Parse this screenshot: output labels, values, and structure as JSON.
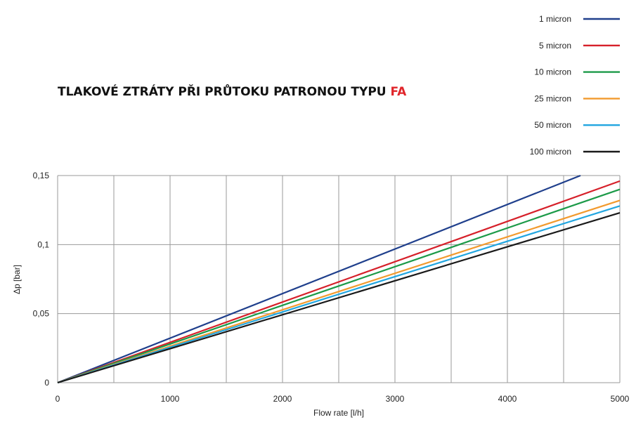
{
  "title": {
    "main": "TLAKOVÉ ZTRÁTY PŘI PRŮTOKU PATRONOU TYPU ",
    "accent": "FA"
  },
  "chart_data": {
    "type": "line",
    "xlabel": "Flow rate [l/h]",
    "ylabel": "Δp [bar]",
    "xlim": [
      0,
      5000
    ],
    "ylim": [
      0,
      0.15
    ],
    "x_ticks": [
      0,
      1000,
      2000,
      3000,
      4000,
      5000
    ],
    "x_tick_labels": [
      "0",
      "1000",
      "2000",
      "3000",
      "4000",
      "5000"
    ],
    "y_ticks": [
      0,
      0.05,
      0.1,
      0.15
    ],
    "y_tick_labels": [
      "0",
      "0,05",
      "0,1",
      "0,15"
    ],
    "grid": true,
    "legend_position": "top-right",
    "series": [
      {
        "name": "1 micron",
        "color": "#1f3f8c",
        "x": [
          0,
          4650
        ],
        "y": [
          0,
          0.15
        ]
      },
      {
        "name": "5 micron",
        "color": "#d6202a",
        "x": [
          0,
          5000
        ],
        "y": [
          0,
          0.146
        ]
      },
      {
        "name": "10 micron",
        "color": "#1c9a48",
        "x": [
          0,
          5000
        ],
        "y": [
          0,
          0.14
        ]
      },
      {
        "name": "25 micron",
        "color": "#f29a2e",
        "x": [
          0,
          5000
        ],
        "y": [
          0,
          0.132
        ]
      },
      {
        "name": "50 micron",
        "color": "#22a6e0",
        "x": [
          0,
          5000
        ],
        "y": [
          0,
          0.128
        ]
      },
      {
        "name": "100 micron",
        "color": "#1a1a1a",
        "x": [
          0,
          5000
        ],
        "y": [
          0,
          0.123
        ]
      }
    ]
  }
}
